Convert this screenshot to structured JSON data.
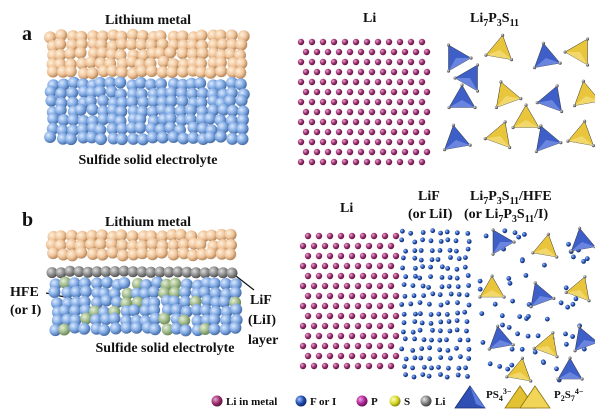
{
  "panels": {
    "a": {
      "letter": "a",
      "top_label": "Lithium metal",
      "bottom_label": "Sulfide solid electrolyte",
      "li_label": "Li",
      "sse_formula": {
        "base": "Li",
        "s1": "7",
        "m1": "P",
        "s2": "3",
        "m2": "S",
        "s3": "11"
      }
    },
    "b": {
      "letter": "b",
      "top_label": "Lithium metal",
      "bottom_label": "Sulfide solid electrolyte",
      "hfe_label_1": "HFE",
      "hfe_label_2": "(or I)",
      "layer_label_1": "LiF",
      "layer_label_2": "(LiI)",
      "layer_label_3": "layer",
      "li_label": "Li",
      "lif_label_1": "LiF",
      "lif_label_2": "(or LiI)",
      "sse_line1": {
        "base": "Li",
        "s1": "7",
        "m1": "P",
        "s2": "3",
        "m2": "S",
        "s3": "11",
        "tail": "/HFE"
      },
      "sse_line2": {
        "pre": "(or Li",
        "s1": "7",
        "m1": "P",
        "s2": "3",
        "m2": "S",
        "s3": "11",
        "tail": "/I)"
      }
    }
  },
  "legend": {
    "li_metal": "Li in metal",
    "f_or_i": "F or I",
    "p": "P",
    "s": "S",
    "li": "Li",
    "ps4": {
      "base": "PS",
      "sub": "4",
      "sup": "3−"
    },
    "p2s7": {
      "base": "P",
      "sub1": "2",
      "mid": "S",
      "sub2": "7",
      "sup": "4−"
    }
  },
  "colors": {
    "li_metal_sphere": "#f0c9a0",
    "sse_sphere": "#7ea8e2",
    "li_atom": "#9b2d6e",
    "f_or_i_atom": "#1f4fb0",
    "p_atom": "#b0269b",
    "s_atom": "#d9d92a",
    "li_small": "#808080",
    "interlayer": "#8a8a8a",
    "hfe": "#9fb98a",
    "tetra_blue": "#3e5fc8",
    "tetra_yellow": "#e8c53a"
  }
}
